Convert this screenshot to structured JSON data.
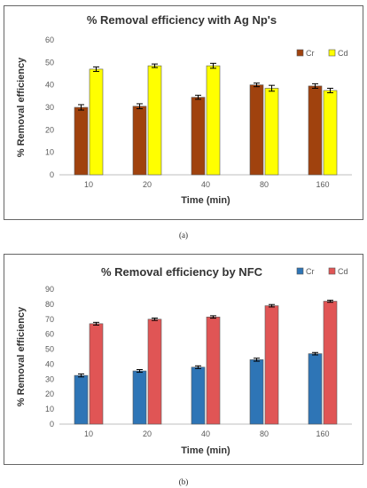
{
  "chart_data": [
    {
      "type": "bar",
      "title": "% Removal efficiency with Ag Np's",
      "xlabel": "Time (min)",
      "ylabel": "% Removal efficiency",
      "categories": [
        "10",
        "20",
        "40",
        "80",
        "160"
      ],
      "ylim": [
        0,
        60
      ],
      "yticks": [
        "0",
        "10",
        "20",
        "30",
        "40",
        "50",
        "60"
      ],
      "legend_position": "top-right",
      "gridlines": false,
      "series": [
        {
          "name": "Cr",
          "color": "#A0420E",
          "values": [
            30,
            30.5,
            34.5,
            40,
            39.5
          ],
          "errors": [
            1.2,
            1.1,
            0.9,
            0.8,
            1.0
          ]
        },
        {
          "name": "Cd",
          "color": "#FFFF00",
          "values": [
            47,
            48.5,
            48.5,
            38.5,
            37.5
          ],
          "errors": [
            1.0,
            0.8,
            1.1,
            1.3,
            1.0
          ]
        }
      ],
      "caption": "(a)"
    },
    {
      "type": "bar",
      "title": "% Removal efficiency by NFC",
      "xlabel": "Time (min)",
      "ylabel": "% Removal efficiency",
      "categories": [
        "10",
        "20",
        "40",
        "80",
        "160"
      ],
      "ylim": [
        0,
        90
      ],
      "yticks": [
        "0",
        "10",
        "20",
        "30",
        "40",
        "50",
        "60",
        "70",
        "80",
        "90"
      ],
      "legend_position": "top-right",
      "gridlines": false,
      "series": [
        {
          "name": "Cr",
          "color": "#2E75B6",
          "values": [
            32.5,
            35.5,
            38,
            43,
            47
          ],
          "errors": [
            1.0,
            0.9,
            0.9,
            1.0,
            0.8
          ]
        },
        {
          "name": "Cd",
          "color": "#E05555",
          "values": [
            67,
            70,
            71.5,
            79,
            82
          ],
          "errors": [
            0.9,
            0.8,
            0.8,
            0.8,
            0.7
          ]
        }
      ],
      "caption": "(b)"
    }
  ]
}
